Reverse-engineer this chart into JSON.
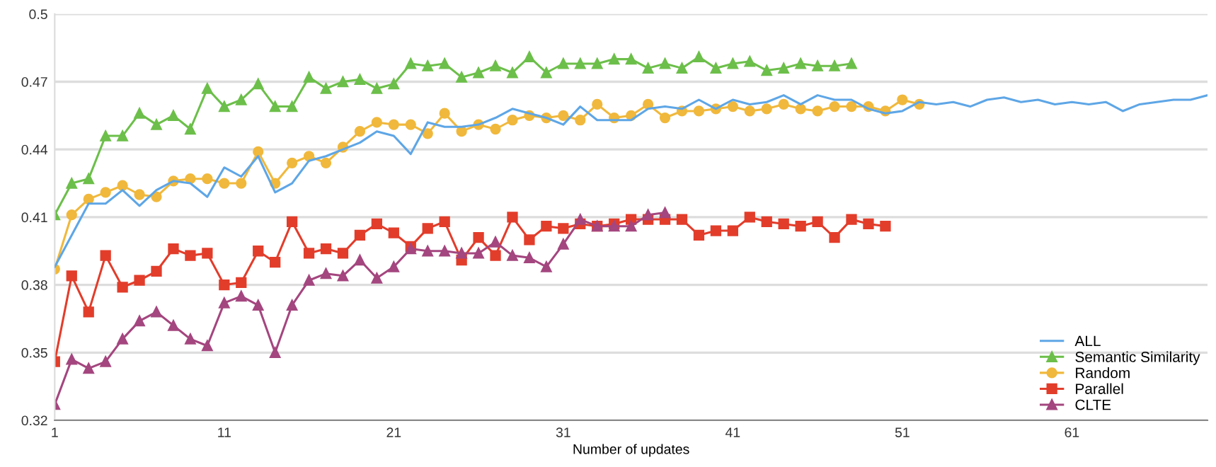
{
  "chart_data": {
    "type": "line",
    "xlabel": "Number of updates",
    "xlim": [
      1,
      69
    ],
    "xticks": [
      1,
      11,
      21,
      31,
      41,
      51,
      61
    ],
    "ylim": [
      0.32,
      0.5
    ],
    "yticks": [
      0.32,
      0.35,
      0.38,
      0.41,
      0.44,
      0.47,
      0.5
    ],
    "grid": "y",
    "legend": "bottom right",
    "line_style": "solid",
    "series": [
      {
        "name": "ALL",
        "color": "#5ea6e6",
        "marker": "none",
        "x": [
          1,
          2,
          3,
          4,
          5,
          6,
          7,
          8,
          9,
          10,
          11,
          12,
          13,
          14,
          15,
          16,
          17,
          18,
          19,
          20,
          21,
          22,
          23,
          24,
          25,
          26,
          27,
          28,
          29,
          30,
          31,
          32,
          33,
          34,
          35,
          36,
          37,
          38,
          39,
          40,
          41,
          42,
          43,
          44,
          45,
          46,
          47,
          48,
          49,
          50,
          51,
          52,
          53,
          54,
          55,
          56,
          57,
          58,
          59,
          60,
          61,
          62,
          63,
          64,
          65,
          66,
          67,
          68,
          69
        ],
        "values": [
          0.388,
          0.402,
          0.416,
          0.416,
          0.422,
          0.415,
          0.422,
          0.426,
          0.425,
          0.419,
          0.432,
          0.428,
          0.437,
          0.421,
          0.425,
          0.435,
          0.437,
          0.44,
          0.443,
          0.448,
          0.446,
          0.438,
          0.452,
          0.45,
          0.45,
          0.451,
          0.454,
          0.458,
          0.456,
          0.454,
          0.451,
          0.459,
          0.453,
          0.453,
          0.453,
          0.458,
          0.459,
          0.458,
          0.462,
          0.458,
          0.462,
          0.46,
          0.461,
          0.464,
          0.46,
          0.464,
          0.462,
          0.462,
          0.458,
          0.456,
          0.457,
          0.461,
          0.46,
          0.461,
          0.459,
          0.462,
          0.463,
          0.461,
          0.462,
          0.46,
          0.461,
          0.46,
          0.461,
          0.457,
          0.46,
          0.461,
          0.462,
          0.462,
          0.464
        ]
      },
      {
        "name": "Semantic Similarity",
        "color": "#6cbf4a",
        "marker": "triangle",
        "x": [
          1,
          2,
          3,
          4,
          5,
          6,
          7,
          8,
          9,
          10,
          11,
          12,
          13,
          14,
          15,
          16,
          17,
          18,
          19,
          20,
          21,
          22,
          23,
          24,
          25,
          26,
          27,
          28,
          29,
          30,
          31,
          32,
          33,
          34,
          35,
          36,
          37,
          38,
          39,
          40,
          41,
          42,
          43,
          44,
          45,
          46,
          47,
          48
        ],
        "values": [
          0.411,
          0.425,
          0.427,
          0.446,
          0.446,
          0.456,
          0.451,
          0.455,
          0.449,
          0.467,
          0.459,
          0.462,
          0.469,
          0.459,
          0.459,
          0.472,
          0.467,
          0.47,
          0.471,
          0.467,
          0.469,
          0.478,
          0.477,
          0.478,
          0.472,
          0.474,
          0.477,
          0.474,
          0.481,
          0.474,
          0.478,
          0.478,
          0.478,
          0.48,
          0.48,
          0.476,
          0.478,
          0.476,
          0.481,
          0.476,
          0.478,
          0.479,
          0.475,
          0.476,
          0.478,
          0.477,
          0.477,
          0.478
        ]
      },
      {
        "name": "Random",
        "color": "#f0b83c",
        "marker": "circle",
        "x": [
          1,
          2,
          3,
          4,
          5,
          6,
          7,
          8,
          9,
          10,
          11,
          12,
          13,
          14,
          15,
          16,
          17,
          18,
          19,
          20,
          21,
          22,
          23,
          24,
          25,
          26,
          27,
          28,
          29,
          30,
          31,
          32,
          33,
          34,
          35,
          36,
          37,
          38,
          39,
          40,
          41,
          42,
          43,
          44,
          45,
          46,
          47,
          48,
          49,
          50,
          51,
          52
        ],
        "values": [
          0.387,
          0.411,
          0.418,
          0.421,
          0.424,
          0.42,
          0.419,
          0.426,
          0.427,
          0.427,
          0.425,
          0.425,
          0.439,
          0.425,
          0.434,
          0.437,
          0.434,
          0.441,
          0.448,
          0.452,
          0.451,
          0.451,
          0.447,
          0.456,
          0.448,
          0.451,
          0.449,
          0.453,
          0.455,
          0.454,
          0.455,
          0.453,
          0.46,
          0.454,
          0.455,
          0.46,
          0.454,
          0.457,
          0.457,
          0.458,
          0.459,
          0.457,
          0.458,
          0.46,
          0.458,
          0.457,
          0.459,
          0.459,
          0.459,
          0.457,
          0.462,
          0.46
        ]
      },
      {
        "name": "Parallel",
        "color": "#e23d2b",
        "marker": "square",
        "x": [
          1,
          2,
          3,
          4,
          5,
          6,
          7,
          8,
          9,
          10,
          11,
          12,
          13,
          14,
          15,
          16,
          17,
          18,
          19,
          20,
          21,
          22,
          23,
          24,
          25,
          26,
          27,
          28,
          29,
          30,
          31,
          32,
          33,
          34,
          35,
          36,
          37,
          38,
          39,
          40,
          41,
          42,
          43,
          44,
          45,
          46,
          47,
          48,
          49,
          50
        ],
        "values": [
          0.346,
          0.384,
          0.368,
          0.393,
          0.379,
          0.382,
          0.386,
          0.396,
          0.393,
          0.394,
          0.38,
          0.381,
          0.395,
          0.39,
          0.408,
          0.394,
          0.396,
          0.394,
          0.402,
          0.407,
          0.403,
          0.397,
          0.405,
          0.408,
          0.391,
          0.401,
          0.393,
          0.41,
          0.4,
          0.406,
          0.405,
          0.407,
          0.406,
          0.407,
          0.409,
          0.409,
          0.409,
          0.409,
          0.402,
          0.404,
          0.404,
          0.41,
          0.408,
          0.407,
          0.406,
          0.408,
          0.401,
          0.409,
          0.407,
          0.406
        ]
      },
      {
        "name": "CLTE",
        "color": "#a4467f",
        "marker": "triangle",
        "x": [
          1,
          2,
          3,
          4,
          5,
          6,
          7,
          8,
          9,
          10,
          11,
          12,
          13,
          14,
          15,
          16,
          17,
          18,
          19,
          20,
          21,
          22,
          23,
          24,
          25,
          26,
          27,
          28,
          29,
          30,
          31,
          32,
          33,
          34,
          35,
          36,
          37
        ],
        "values": [
          0.327,
          0.347,
          0.343,
          0.346,
          0.356,
          0.364,
          0.368,
          0.362,
          0.356,
          0.353,
          0.372,
          0.375,
          0.371,
          0.35,
          0.371,
          0.382,
          0.385,
          0.384,
          0.391,
          0.383,
          0.388,
          0.396,
          0.395,
          0.395,
          0.394,
          0.394,
          0.399,
          0.393,
          0.392,
          0.388,
          0.398,
          0.409,
          0.406,
          0.406,
          0.406,
          0.411,
          0.412
        ]
      }
    ]
  }
}
